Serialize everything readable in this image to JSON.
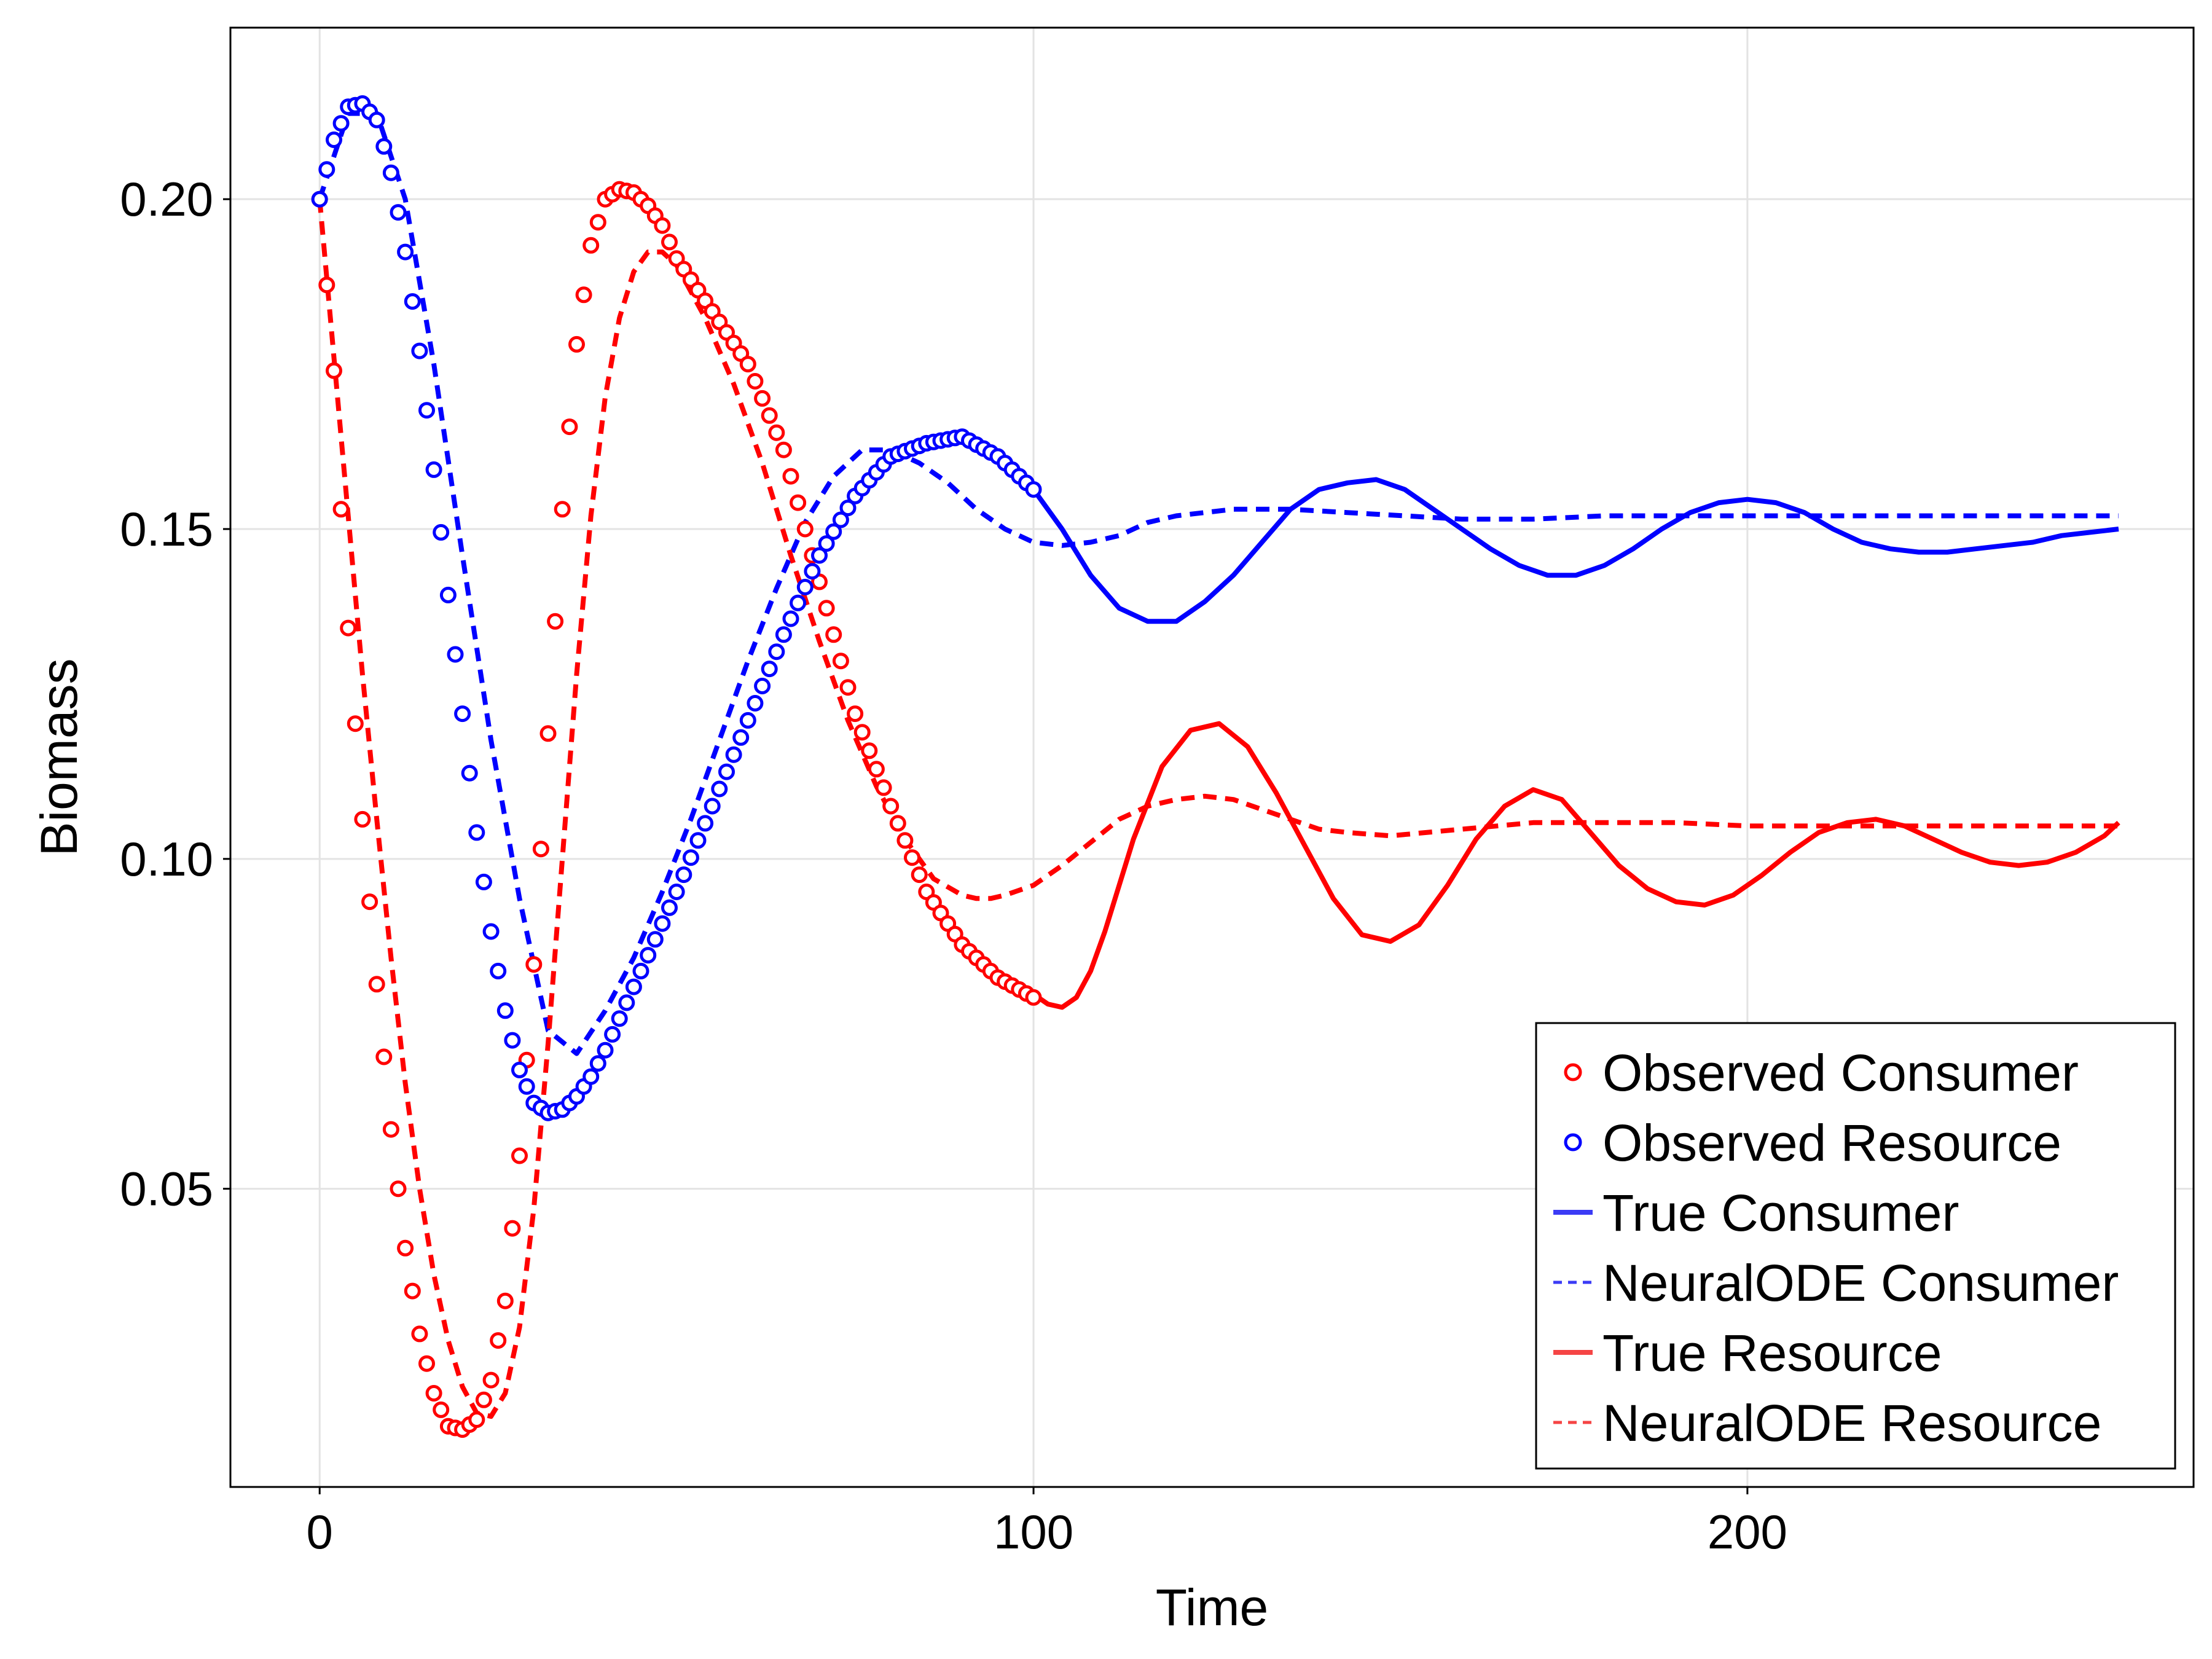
{
  "colors": {
    "consumer": "#ff0000",
    "resource": "#0000ff",
    "legend_consumer_line": "#3b3bf5",
    "legend_resource_line": "#f54545",
    "grid": "#e3e3e3",
    "axis": "#000000",
    "background": "#ffffff"
  },
  "chart_data": {
    "type": "line",
    "title": "",
    "xlabel": "Time",
    "ylabel": "Biomass",
    "xlim": [
      -12.5,
      262.5
    ],
    "ylim": [
      0.0048,
      0.226
    ],
    "x_ticks": [
      0,
      100,
      200
    ],
    "x_tick_labels": [
      "0",
      "100",
      "200"
    ],
    "y_ticks": [
      0.05,
      0.1,
      0.15,
      0.2
    ],
    "y_tick_labels": [
      "0.05",
      "0.10",
      "0.15",
      "0.20"
    ],
    "grid": true,
    "legend_position": "bottom-right",
    "legend": [
      {
        "label": "Observed Consumer",
        "symbol": "circle",
        "color": "#ff0000"
      },
      {
        "label": "Observed Resource",
        "symbol": "circle",
        "color": "#0000ff"
      },
      {
        "label": "True Consumer",
        "symbol": "line",
        "color": "#3b3bf5"
      },
      {
        "label": "NeuralODE Consumer",
        "symbol": "dash",
        "color": "#3b3bf5"
      },
      {
        "label": "True Resource",
        "symbol": "line",
        "color": "#f54545"
      },
      {
        "label": "NeuralODE Resource",
        "symbol": "dash",
        "color": "#f54545"
      }
    ],
    "observed": {
      "x_range": [
        0,
        100
      ],
      "x_step": 1,
      "description_series": [
        "red",
        "blue"
      ]
    },
    "series": [
      {
        "name": "Observed Consumer",
        "kind": "scatter",
        "color": "#ff0000",
        "x": [
          0,
          2,
          3,
          4,
          6,
          8,
          10,
          12,
          14,
          16,
          18,
          20,
          22,
          24,
          26,
          28,
          30,
          32,
          34,
          36,
          38,
          40,
          42,
          44,
          46,
          48,
          50,
          55,
          60,
          65,
          70,
          75,
          80,
          85,
          90,
          95,
          100
        ],
        "y": [
          0.2,
          0.174,
          0.153,
          0.135,
          0.106,
          0.081,
          0.059,
          0.041,
          0.028,
          0.019,
          0.014,
          0.0135,
          0.015,
          0.021,
          0.033,
          0.055,
          0.084,
          0.119,
          0.153,
          0.178,
          0.193,
          0.2,
          0.2015,
          0.201,
          0.199,
          0.196,
          0.191,
          0.183,
          0.175,
          0.162,
          0.142,
          0.122,
          0.108,
          0.095,
          0.087,
          0.082,
          0.079
        ]
      },
      {
        "name": "Observed Resource",
        "kind": "scatter",
        "color": "#0000ff",
        "x": [
          0,
          2,
          4,
          6,
          8,
          10,
          12,
          14,
          16,
          18,
          20,
          22,
          24,
          26,
          28,
          30,
          32,
          34,
          36,
          38,
          40,
          45,
          50,
          55,
          60,
          65,
          70,
          75,
          80,
          85,
          90,
          95,
          100
        ],
        "y": [
          0.2,
          0.209,
          0.214,
          0.2145,
          0.212,
          0.204,
          0.192,
          0.177,
          0.159,
          0.14,
          0.122,
          0.104,
          0.089,
          0.077,
          0.068,
          0.063,
          0.0615,
          0.062,
          0.064,
          0.067,
          0.071,
          0.083,
          0.095,
          0.108,
          0.121,
          0.134,
          0.146,
          0.155,
          0.161,
          0.163,
          0.164,
          0.161,
          0.156
        ]
      },
      {
        "name": "True Consumer",
        "kind": "line",
        "color": "#0000ff",
        "x": [
          100,
          104,
          108,
          112,
          116,
          120,
          124,
          128,
          132,
          136,
          140,
          144,
          148,
          152,
          156,
          160,
          164,
          168,
          172,
          176,
          180,
          184,
          188,
          192,
          196,
          200,
          204,
          208,
          212,
          216,
          220,
          224,
          228,
          232,
          236,
          240,
          244,
          248,
          252
        ],
        "y": [
          0.156,
          0.15,
          0.143,
          0.138,
          0.136,
          0.136,
          0.139,
          0.143,
          0.148,
          0.153,
          0.156,
          0.157,
          0.1575,
          0.156,
          0.153,
          0.15,
          0.147,
          0.1445,
          0.143,
          0.143,
          0.1445,
          0.147,
          0.15,
          0.1525,
          0.154,
          0.1545,
          0.154,
          0.1525,
          0.15,
          0.148,
          0.147,
          0.1465,
          0.1465,
          0.147,
          0.1475,
          0.148,
          0.149,
          0.1495,
          0.15
        ]
      },
      {
        "name": "NeuralODE Consumer",
        "kind": "dash",
        "color": "#0000ff",
        "x": [
          0,
          4,
          8,
          12,
          16,
          20,
          24,
          28,
          32,
          36,
          40,
          44,
          48,
          52,
          56,
          60,
          64,
          68,
          72,
          76,
          80,
          84,
          88,
          92,
          96,
          100,
          104,
          108,
          112,
          116,
          120,
          128,
          136,
          144,
          152,
          160,
          170,
          180,
          190,
          200,
          210,
          220,
          230,
          240,
          252
        ],
        "y": [
          0.2,
          0.213,
          0.213,
          0.2,
          0.175,
          0.146,
          0.118,
          0.094,
          0.074,
          0.0705,
          0.077,
          0.085,
          0.095,
          0.106,
          0.118,
          0.13,
          0.141,
          0.151,
          0.158,
          0.162,
          0.162,
          0.16,
          0.157,
          0.153,
          0.15,
          0.148,
          0.1475,
          0.148,
          0.149,
          0.151,
          0.152,
          0.153,
          0.153,
          0.1525,
          0.152,
          0.1515,
          0.1515,
          0.152,
          0.152,
          0.152,
          0.152,
          0.152,
          0.152,
          0.152,
          0.152
        ]
      },
      {
        "name": "True Resource",
        "kind": "line",
        "color": "#ff0000",
        "x": [
          100,
          102,
          104,
          106,
          108,
          110,
          114,
          118,
          122,
          126,
          130,
          134,
          138,
          142,
          146,
          150,
          154,
          158,
          162,
          166,
          170,
          174,
          178,
          182,
          186,
          190,
          194,
          198,
          202,
          206,
          210,
          214,
          218,
          222,
          226,
          230,
          234,
          238,
          242,
          246,
          250,
          252
        ],
        "y": [
          0.0795,
          0.078,
          0.0775,
          0.079,
          0.083,
          0.089,
          0.103,
          0.114,
          0.1195,
          0.1205,
          0.117,
          0.11,
          0.102,
          0.094,
          0.0885,
          0.0875,
          0.09,
          0.096,
          0.103,
          0.108,
          0.1105,
          0.109,
          0.104,
          0.099,
          0.0955,
          0.0935,
          0.093,
          0.0945,
          0.0975,
          0.101,
          0.104,
          0.1055,
          0.106,
          0.105,
          0.103,
          0.101,
          0.0995,
          0.099,
          0.0995,
          0.101,
          0.1035,
          0.1055
        ]
      },
      {
        "name": "NeuralODE Resource",
        "kind": "dash",
        "color": "#ff0000",
        "x": [
          0,
          2,
          4,
          6,
          8,
          10,
          12,
          14,
          16,
          18,
          20,
          22,
          24,
          26,
          28,
          30,
          32,
          34,
          36,
          38,
          40,
          42,
          44,
          46,
          48,
          50,
          54,
          58,
          62,
          66,
          70,
          74,
          78,
          82,
          86,
          90,
          92,
          94,
          96,
          100,
          104,
          108,
          112,
          116,
          120,
          124,
          128,
          132,
          136,
          140,
          144,
          150,
          160,
          170,
          180,
          190,
          200,
          210,
          220,
          230,
          240,
          252
        ],
        "y": [
          0.2,
          0.176,
          0.152,
          0.128,
          0.106,
          0.085,
          0.066,
          0.05,
          0.037,
          0.027,
          0.02,
          0.016,
          0.0155,
          0.019,
          0.029,
          0.047,
          0.072,
          0.1,
          0.128,
          0.152,
          0.17,
          0.182,
          0.189,
          0.192,
          0.192,
          0.19,
          0.182,
          0.172,
          0.16,
          0.146,
          0.133,
          0.121,
          0.111,
          0.103,
          0.097,
          0.0945,
          0.094,
          0.094,
          0.0945,
          0.096,
          0.099,
          0.1025,
          0.106,
          0.108,
          0.109,
          0.1095,
          0.109,
          0.1075,
          0.106,
          0.1045,
          0.104,
          0.1035,
          0.1045,
          0.1055,
          0.1055,
          0.1055,
          0.105,
          0.105,
          0.105,
          0.105,
          0.105,
          0.105
        ]
      }
    ]
  }
}
